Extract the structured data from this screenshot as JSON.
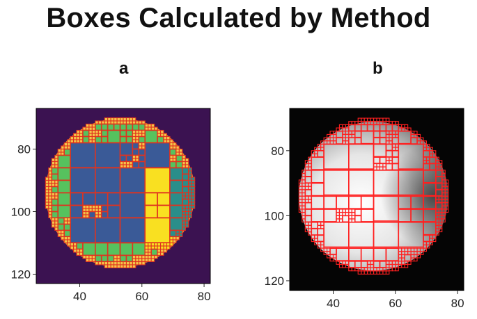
{
  "title": "Boxes Calculated by Method",
  "panels": {
    "a": {
      "label": "a",
      "colormap": "viridis",
      "background": "#3b1251",
      "box_outline": "#e0321f",
      "fill_colors": [
        "#3a5a97",
        "#56c25e",
        "#2a8e8a",
        "#f9e021"
      ],
      "x_ticks": [
        "40",
        "60",
        "80"
      ],
      "y_ticks": [
        "80",
        "100",
        "120"
      ]
    },
    "b": {
      "label": "b",
      "colormap": "grayscale",
      "background": "#050505",
      "box_outline": "#ff2020",
      "x_ticks": [
        "40",
        "60",
        "80"
      ],
      "y_ticks": [
        "80",
        "100",
        "120"
      ]
    }
  },
  "chart_data": [
    {
      "type": "heatmap",
      "panel": "a",
      "xlim": [
        26,
        82
      ],
      "ylim": [
        123,
        67
      ],
      "x_ticks": [
        40,
        60,
        80
      ],
      "y_ticks": [
        80,
        100,
        120
      ],
      "region": {
        "shape": "disk",
        "center_x": 53,
        "center_y": 94,
        "radius": 24
      }
    },
    {
      "type": "heatmap",
      "panel": "b",
      "xlim": [
        26,
        82
      ],
      "ylim": [
        123,
        67
      ],
      "x_ticks": [
        40,
        60,
        80
      ],
      "y_ticks": [
        80,
        100,
        120
      ],
      "region": {
        "shape": "disk",
        "center_x": 53,
        "center_y": 94,
        "radius": 24
      }
    }
  ]
}
